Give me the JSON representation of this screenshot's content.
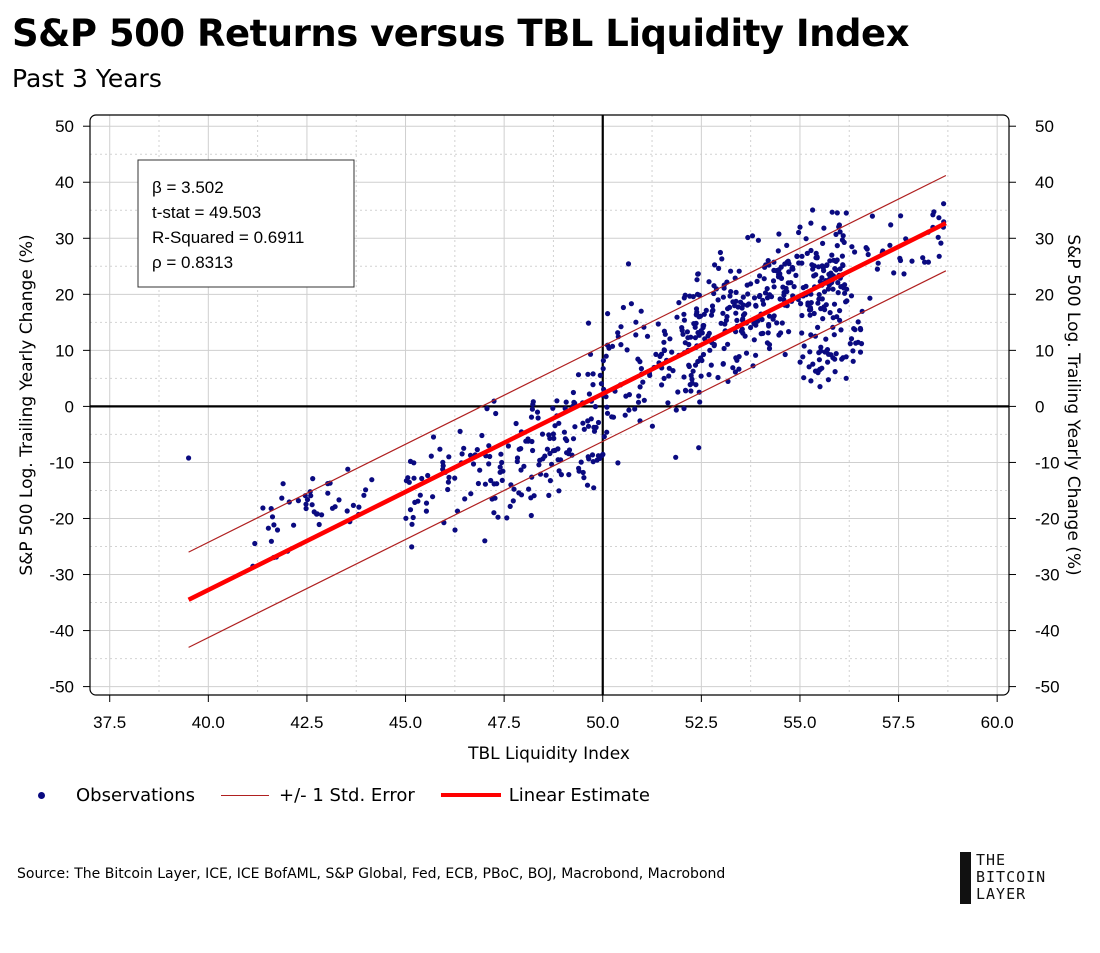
{
  "header": {
    "title": "S&P 500 Returns versus TBL Liquidity Index",
    "subtitle": "Past 3 Years"
  },
  "chart_data": {
    "type": "scatter",
    "title": "S&P 500 Returns versus TBL Liquidity Index",
    "subtitle": "Past 3 Years",
    "xlabel": "TBL Liquidity Index",
    "ylabel": "S&P 500 Log. Trailing Yearly Change (%)",
    "ylabel_right": "S&P 500 Log. Trailing Yearly Change (%)",
    "xlim": [
      37.0,
      60.3
    ],
    "ylim": [
      -51.5,
      52
    ],
    "x_ticks": [
      37.5,
      40.0,
      42.5,
      45.0,
      47.5,
      50.0,
      52.5,
      55.0,
      57.5,
      60.0
    ],
    "x_tick_labels": [
      "37.5",
      "40.0",
      "42.5",
      "45.0",
      "47.5",
      "50.0",
      "52.5",
      "55.0",
      "57.5",
      "60.0"
    ],
    "y_ticks": [
      -50,
      -40,
      -30,
      -20,
      -10,
      0,
      10,
      20,
      30,
      40,
      50
    ],
    "y_tick_labels": [
      "-50",
      "-40",
      "-30",
      "-20",
      "-10",
      "0",
      "10",
      "20",
      "30",
      "40",
      "50"
    ],
    "grid": true,
    "reference_lines": {
      "x": 50.0,
      "y": 0
    },
    "stats": [
      "β = 3.502",
      "t-stat = 49.503",
      "R-Squared = 0.6911",
      "ρ = 0.8313"
    ],
    "regression": {
      "beta": 3.502,
      "x_range": [
        39.5,
        58.7
      ],
      "y_start": -34.5,
      "y_end": 32.7,
      "std_error": 8.5
    },
    "observations": {
      "count": 760,
      "approximate_clusters": [
        {
          "x_range": [
            40.8,
            44.2
          ],
          "y_range": [
            -23,
            -7
          ]
        },
        {
          "x_range": [
            45.0,
            50.0
          ],
          "y_range": [
            -24,
            2
          ]
        },
        {
          "x_range": [
            49.5,
            52.5
          ],
          "y_range": [
            -15,
            30
          ]
        },
        {
          "x_range": [
            52.0,
            58.7
          ],
          "y_range": [
            3,
            35
          ]
        }
      ]
    },
    "series": [
      {
        "name": "Observations",
        "color": "#0a0a80"
      },
      {
        "name": "+/- 1 Std. Error",
        "color": "#b02020"
      },
      {
        "name": "Linear Estimate",
        "color": "#ff0000"
      }
    ]
  },
  "legend": {
    "observations": "Observations",
    "std_error": "+/- 1 Std. Error",
    "linear": "Linear Estimate"
  },
  "footer": {
    "source": "Source: The Bitcoin Layer, ICE, ICE BofAML, S&P Global, Fed, ECB, PBoC, BOJ, Macrobond, Macrobond",
    "logo_lines": [
      "THE",
      "BITCOIN",
      "LAYER"
    ]
  },
  "colors": {
    "points": "#0a0a80",
    "regression": "#ff0000",
    "std_error": "#b02020"
  }
}
